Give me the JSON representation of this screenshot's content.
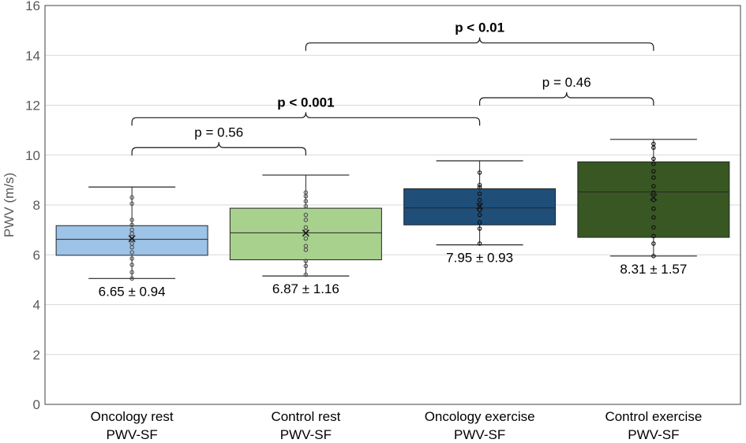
{
  "chart_data": {
    "type": "box",
    "title": "",
    "xlabel": "",
    "ylabel": "PWV (m/s)",
    "ylim": [
      0,
      16
    ],
    "yticks": [
      0,
      2,
      4,
      6,
      8,
      10,
      12,
      14,
      16
    ],
    "grid": true,
    "categories": [
      {
        "line1": "Oncology rest",
        "line2": "PWV-SF"
      },
      {
        "line1": "Control rest",
        "line2": "PWV-SF"
      },
      {
        "line1": "Oncology exercise",
        "line2": "PWV-SF"
      },
      {
        "line1": "Control exercise",
        "line2": "PWV-SF"
      }
    ],
    "boxes": [
      {
        "min": 5.05,
        "q1": 5.98,
        "median": 6.62,
        "q3": 7.17,
        "max": 8.72,
        "mean": 6.65,
        "label": "6.65 ± 0.94",
        "fill": "#9dc3e6",
        "point_color": "#4d4d4d",
        "points": [
          5.05,
          5.3,
          5.6,
          5.85,
          6.1,
          6.3,
          6.45,
          6.6,
          6.72,
          6.85,
          7.0,
          7.2,
          7.4,
          8.05,
          8.3
        ]
      },
      {
        "min": 5.15,
        "q1": 5.8,
        "median": 6.88,
        "q3": 7.87,
        "max": 9.2,
        "mean": 6.87,
        "label": "6.87 ± 1.16",
        "fill": "#a9d18e",
        "point_color": "#4d4d4d",
        "points": [
          5.2,
          5.55,
          5.75,
          6.2,
          6.35,
          6.65,
          6.95,
          7.1,
          7.4,
          7.6,
          7.95,
          8.15,
          8.35,
          8.5
        ]
      },
      {
        "min": 6.4,
        "q1": 7.2,
        "median": 7.88,
        "q3": 8.65,
        "max": 9.77,
        "mean": 7.95,
        "label": "7.95 ± 0.93",
        "fill": "#1f4e79",
        "point_color": "#0d0d0d",
        "points": [
          6.45,
          7.05,
          7.3,
          7.6,
          7.8,
          8.0,
          8.2,
          8.45,
          8.7,
          8.8,
          9.3
        ]
      },
      {
        "min": 5.95,
        "q1": 6.7,
        "median": 8.52,
        "q3": 9.73,
        "max": 10.63,
        "mean": 8.31,
        "label": "8.31 ± 1.57",
        "fill": "#385723",
        "point_color": "#0d0d0d",
        "points": [
          5.95,
          6.45,
          6.75,
          7.1,
          7.5,
          7.85,
          8.2,
          8.5,
          8.75,
          9.1,
          9.35,
          9.65,
          9.85,
          10.3,
          10.45
        ]
      }
    ],
    "annotations": [
      {
        "text": "p = 0.56",
        "bold": false,
        "from": 0,
        "to": 1,
        "y": 10.3
      },
      {
        "text": "p < 0.001",
        "bold": true,
        "from": 0,
        "to": 2,
        "y": 11.5
      },
      {
        "text": "p = 0.46",
        "bold": false,
        "from": 2,
        "to": 3,
        "y": 12.3
      },
      {
        "text": "p < 0.01",
        "bold": true,
        "from": 1,
        "to": 3,
        "y": 14.5
      }
    ]
  }
}
